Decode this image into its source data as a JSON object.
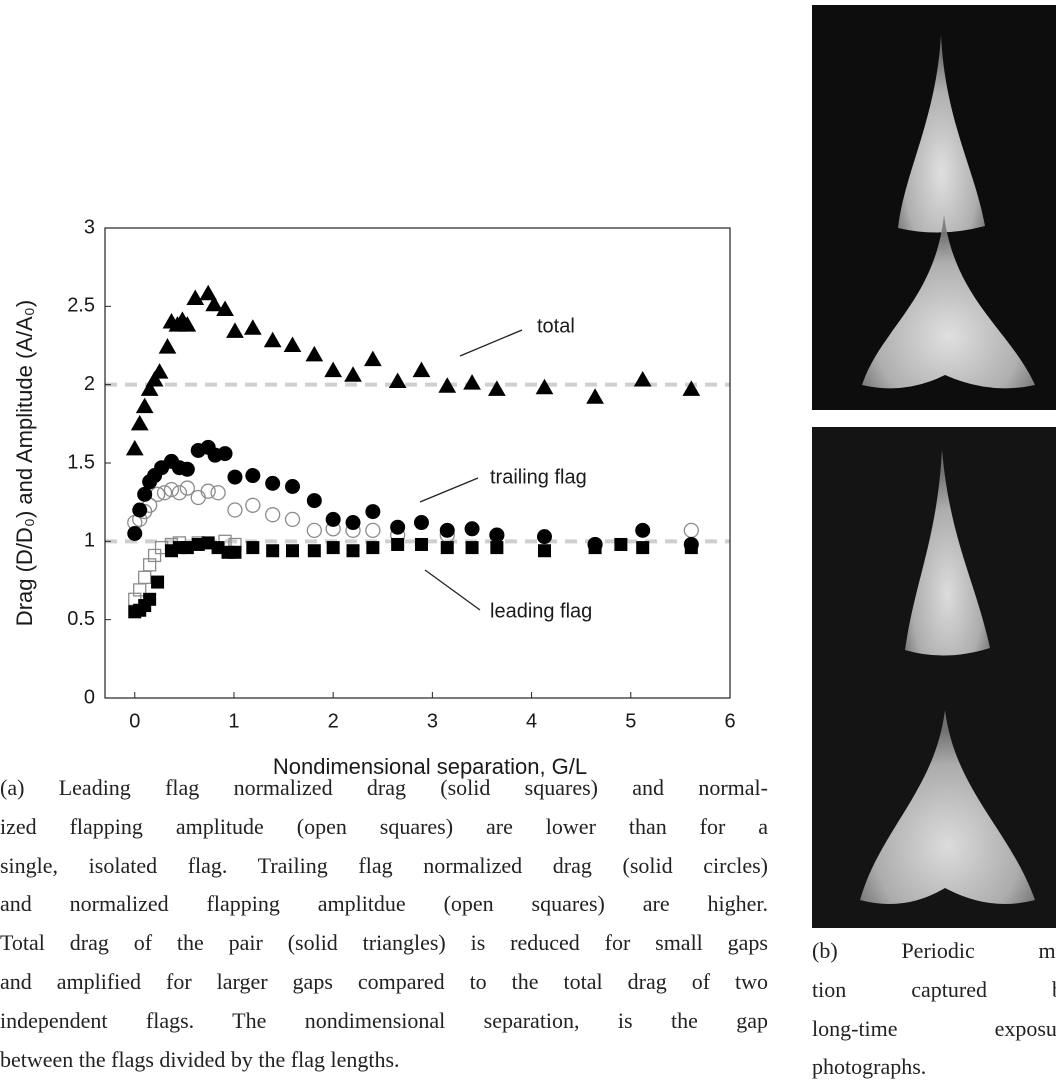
{
  "chart_data": {
    "type": "scatter",
    "xlabel": "Nondimensional separation, G/L",
    "ylabel": "Drag (D/D₀) and Amplitude (A/A₀)",
    "xlim": [
      -0.3,
      6
    ],
    "ylim": [
      0,
      3
    ],
    "xticks": [
      0,
      1,
      2,
      3,
      4,
      5,
      6
    ],
    "yticks": [
      0,
      0.5,
      1,
      1.5,
      2,
      2.5,
      3
    ],
    "reference_lines": [
      1,
      2
    ],
    "reference_color": "#cfcfcf",
    "annotations": [
      "total",
      "trailing flag",
      "leading flag"
    ],
    "series": [
      {
        "marker": "triangle",
        "filled": true,
        "color": "#000000",
        "x": [
          0,
          0.05,
          0.1,
          0.15,
          0.2,
          0.25,
          0.33,
          0.37,
          0.43,
          0.48,
          0.53,
          0.61,
          0.74,
          0.8,
          0.91,
          1.01,
          1.19,
          1.39,
          1.59,
          1.81,
          2.0,
          2.2,
          2.4,
          2.65,
          2.89,
          3.15,
          3.4,
          3.65,
          4.13,
          4.64,
          5.12,
          5.61
        ],
        "values": [
          1.59,
          1.75,
          1.86,
          1.97,
          2.03,
          2.08,
          2.24,
          2.4,
          2.38,
          2.41,
          2.38,
          2.55,
          2.58,
          2.51,
          2.48,
          2.34,
          2.36,
          2.28,
          2.25,
          2.19,
          2.09,
          2.06,
          2.16,
          2.02,
          2.09,
          1.99,
          2.01,
          1.97,
          1.98,
          1.92,
          2.03,
          1.97
        ]
      },
      {
        "marker": "circle",
        "filled": false,
        "color": "#8c8c8c",
        "x": [
          0,
          0.05,
          0.1,
          0.15,
          0.23,
          0.3,
          0.37,
          0.45,
          0.53,
          0.64,
          0.74,
          0.84,
          1.01,
          1.19,
          1.39,
          1.59,
          1.81,
          2.0,
          2.2,
          2.4,
          2.65,
          3.15,
          3.65,
          4.64,
          5.61
        ],
        "values": [
          1.12,
          1.14,
          1.19,
          1.23,
          1.3,
          1.31,
          1.33,
          1.31,
          1.34,
          1.28,
          1.32,
          1.31,
          1.2,
          1.23,
          1.17,
          1.14,
          1.07,
          1.08,
          1.07,
          1.07,
          1.04,
          1.04,
          1.04,
          0.98,
          1.07
        ]
      },
      {
        "marker": "circle",
        "filled": true,
        "color": "#000000",
        "x": [
          0,
          0.05,
          0.1,
          0.15,
          0.2,
          0.27,
          0.37,
          0.45,
          0.53,
          0.64,
          0.74,
          0.81,
          0.91,
          1.01,
          1.19,
          1.39,
          1.59,
          1.81,
          2.0,
          2.2,
          2.4,
          2.65,
          2.89,
          3.15,
          3.4,
          3.65,
          4.13,
          4.64,
          5.12,
          5.61
        ],
        "values": [
          1.05,
          1.2,
          1.3,
          1.38,
          1.42,
          1.47,
          1.51,
          1.47,
          1.46,
          1.58,
          1.6,
          1.55,
          1.56,
          1.41,
          1.42,
          1.37,
          1.35,
          1.26,
          1.14,
          1.12,
          1.19,
          1.09,
          1.12,
          1.07,
          1.08,
          1.04,
          1.03,
          0.98,
          1.07,
          0.98
        ]
      },
      {
        "marker": "square",
        "filled": false,
        "color": "#8c8c8c",
        "x": [
          0,
          0.05,
          0.1,
          0.15,
          0.2,
          0.27,
          0.37,
          0.45,
          0.64,
          0.91,
          1.01
        ],
        "values": [
          0.63,
          0.69,
          0.77,
          0.85,
          0.91,
          0.96,
          0.98,
          0.99,
          0.99,
          1.0,
          0.98
        ]
      },
      {
        "marker": "square",
        "filled": true,
        "color": "#000000",
        "x": [
          0,
          0.05,
          0.1,
          0.15,
          0.23,
          0.37,
          0.45,
          0.53,
          0.64,
          0.74,
          0.84,
          0.94,
          1.01,
          1.19,
          1.39,
          1.59,
          1.81,
          2.0,
          2.2,
          2.4,
          2.65,
          2.89,
          3.15,
          3.4,
          3.65,
          4.13,
          4.64,
          4.9,
          5.12,
          5.61
        ],
        "values": [
          0.55,
          0.56,
          0.59,
          0.63,
          0.74,
          0.94,
          0.96,
          0.96,
          0.98,
          0.99,
          0.96,
          0.93,
          0.93,
          0.96,
          0.94,
          0.94,
          0.94,
          0.96,
          0.94,
          0.96,
          0.98,
          0.98,
          0.96,
          0.96,
          0.96,
          0.94,
          0.96,
          0.98,
          0.96,
          0.96
        ]
      }
    ]
  },
  "captions": {
    "a": [
      "(a) Leading flag normalized drag (solid squares) and normal-",
      "ized flapping amplitude (open squares) are lower than for a",
      "single, isolated flag. Trailing flag normalized drag (solid circles)",
      "and normalized flapping amplitdue (open squares) are higher.",
      "Total drag of the pair (solid triangles) is reduced for small gaps",
      "and amplified for larger gaps compared to the total drag of two",
      "independent flags. The nondimensional separation, is the gap",
      "between the flags divided by the flag lengths."
    ],
    "b": [
      "(b) Periodic mo-",
      "tion captured by",
      "long-time exposure",
      "photographs."
    ]
  }
}
